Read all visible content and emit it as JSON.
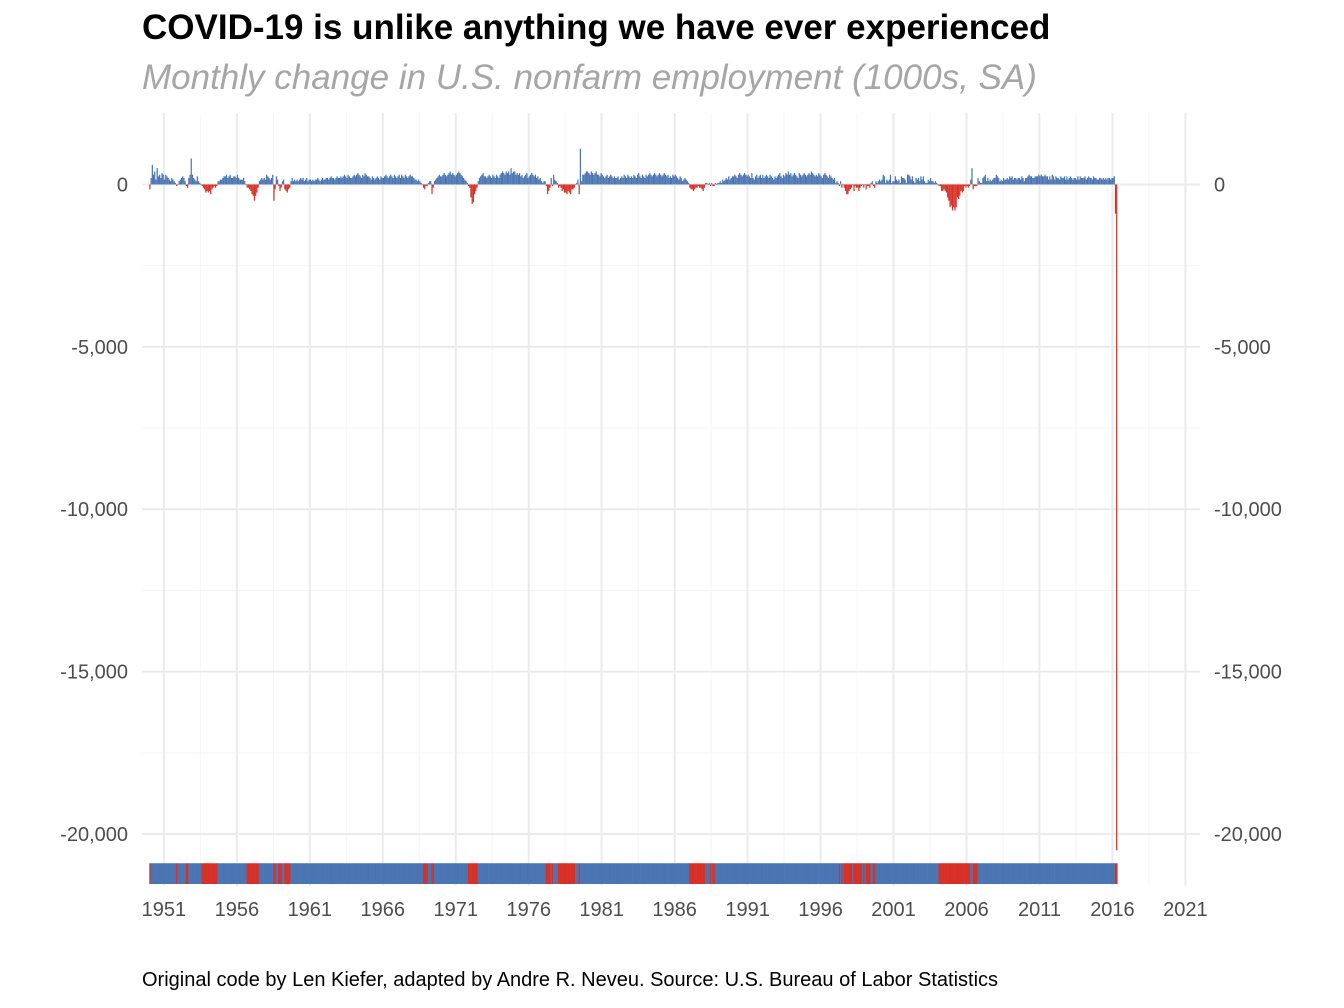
{
  "title": "COVID-19 is unlike anything we have ever experienced",
  "subtitle": "Monthly change in U.S. nonfarm employment (1000s, SA)",
  "caption": "Original code by Len Kiefer, adapted by Andre R. Neveu. Source: U.S. Bureau of Labor Statistics",
  "colors": {
    "positive": "#4a75b2",
    "negative": "#d73027",
    "grid": "#ebebeb",
    "tick_text": "#4d4d4d"
  },
  "chart_data": {
    "type": "bar",
    "title": "COVID-19 is unlike anything we have ever experienced",
    "subtitle": "Monthly change in U.S. nonfarm employment (1000s, SA)",
    "xlabel": "",
    "ylabel": "",
    "xlim": [
      1949.5,
      2022
    ],
    "ylim": [
      -21600,
      2200
    ],
    "grid": true,
    "secondary_y_axis": true,
    "rug_strip": "colored by sign of monthly change (blue positive, red negative)",
    "x_ticks": [
      "1951",
      "1956",
      "1961",
      "1966",
      "1971",
      "1976",
      "1981",
      "1986",
      "1991",
      "1996",
      "2001",
      "2006",
      "2011",
      "2016",
      "2021"
    ],
    "x_tick_values": [
      1951,
      1956,
      1961,
      1966,
      1971,
      1976,
      1981,
      1986,
      1991,
      1996,
      2001,
      2006,
      2011,
      2016,
      2021
    ],
    "y_ticks": [
      "0",
      "-5,000",
      "-10,000",
      "-15,000",
      "-20,000"
    ],
    "y_tick_values": [
      0,
      -5000,
      -10000,
      -15000,
      -20000
    ],
    "period_start": "1950-01",
    "frequency": "monthly",
    "values": [
      -150,
      200,
      600,
      300,
      400,
      150,
      500,
      250,
      300,
      200,
      350,
      300,
      150,
      300,
      250,
      200,
      150,
      100,
      200,
      150,
      100,
      50,
      -50,
      0,
      100,
      150,
      200,
      250,
      200,
      100,
      -50,
      -100,
      200,
      300,
      800,
      300,
      200,
      150,
      100,
      250,
      100,
      50,
      0,
      -50,
      -100,
      -150,
      -250,
      -200,
      -250,
      -200,
      -300,
      -150,
      -100,
      -50,
      -100,
      -50,
      100,
      100,
      150,
      150,
      200,
      250,
      250,
      300,
      200,
      250,
      300,
      200,
      200,
      250,
      250,
      200,
      300,
      200,
      150,
      150,
      150,
      200,
      100,
      0,
      -100,
      -100,
      -150,
      -200,
      -300,
      -350,
      -500,
      -350,
      -250,
      -100,
      100,
      150,
      200,
      150,
      200,
      150,
      300,
      250,
      200,
      150,
      200,
      300,
      -500,
      -150,
      250,
      150,
      -50,
      -200,
      -100,
      100,
      150,
      -150,
      -200,
      -250,
      -150,
      -100,
      100,
      200,
      100,
      150,
      100,
      150,
      100,
      150,
      200,
      150,
      200,
      100,
      150,
      200,
      100,
      150,
      150,
      100,
      150,
      100,
      150,
      150,
      200,
      150,
      100,
      150,
      200,
      150,
      150,
      200,
      200,
      150,
      200,
      250,
      200,
      200,
      150,
      200,
      250,
      200,
      200,
      250,
      200,
      250,
      300,
      250,
      200,
      300,
      250,
      200,
      200,
      250,
      300,
      250,
      300,
      350,
      300,
      250,
      200,
      300,
      250,
      350,
      300,
      250,
      250,
      200,
      150,
      250,
      200,
      150,
      200,
      250,
      200,
      150,
      250,
      200,
      200,
      250,
      300,
      250,
      200,
      250,
      300,
      250,
      200,
      300,
      250,
      200,
      250,
      300,
      200,
      300,
      250,
      200,
      300,
      250,
      200,
      250,
      300,
      250,
      250,
      200,
      150,
      150,
      100,
      150,
      100,
      50,
      0,
      -100,
      -150,
      -50,
      -50,
      50,
      100,
      100,
      -300,
      -100,
      100,
      150,
      200,
      250,
      300,
      250,
      250,
      300,
      350,
      300,
      250,
      300,
      350,
      400,
      300,
      350,
      300,
      250,
      300,
      350,
      400,
      350,
      300,
      250,
      200,
      150,
      100,
      50,
      -50,
      -100,
      -400,
      -600,
      -550,
      -300,
      -200,
      -100,
      100,
      200,
      250,
      300,
      350,
      250,
      250,
      200,
      250,
      300,
      250,
      200,
      300,
      250,
      200,
      300,
      250,
      200,
      300,
      350,
      400,
      350,
      300,
      400,
      350,
      400,
      300,
      500,
      350,
      400,
      400,
      300,
      350,
      300,
      350,
      250,
      300,
      200,
      250,
      300,
      350,
      200,
      250,
      300,
      350,
      300,
      250,
      300,
      200,
      250,
      150,
      200,
      100,
      50,
      100,
      100,
      -50,
      -300,
      -200,
      -100,
      200,
      -50,
      300,
      150,
      100,
      50,
      -100,
      -50,
      -100,
      -200,
      -150,
      -250,
      -250,
      -300,
      -200,
      -250,
      -300,
      -150,
      -150,
      -100,
      0,
      50,
      150,
      -300,
      1100,
      100,
      300,
      300,
      350,
      400,
      400,
      350,
      300,
      400,
      350,
      300,
      350,
      400,
      300,
      300,
      250,
      350,
      300,
      250,
      200,
      250,
      300,
      200,
      250,
      300,
      250,
      200,
      250,
      200,
      200,
      250,
      150,
      200,
      250,
      200,
      300,
      250,
      200,
      300,
      250,
      200,
      250,
      200,
      300,
      250,
      200,
      300,
      350,
      250,
      200,
      300,
      250,
      200,
      300,
      250,
      300,
      350,
      300,
      250,
      300,
      350,
      300,
      250,
      300,
      350,
      300,
      250,
      300,
      350,
      300,
      250,
      300,
      200,
      250,
      200,
      300,
      250,
      300,
      250,
      200,
      150,
      250,
      200,
      100,
      150,
      200,
      150,
      100,
      50,
      -100,
      -150,
      -150,
      -200,
      -150,
      -100,
      -100,
      -50,
      -100,
      -100,
      -150,
      -200,
      -100,
      50,
      50,
      0,
      50,
      -50,
      50,
      -50,
      -50,
      50,
      0,
      50,
      50,
      100,
      50,
      150,
      100,
      150,
      200,
      150,
      250,
      150,
      200,
      250,
      250,
      300,
      250,
      200,
      300,
      350,
      300,
      250,
      300,
      350,
      300,
      250,
      300,
      250,
      200,
      350,
      200,
      150,
      250,
      300,
      200,
      250,
      300,
      200,
      300,
      200,
      250,
      300,
      250,
      200,
      300,
      250,
      200,
      150,
      250,
      200,
      250,
      300,
      350,
      250,
      200,
      300,
      250,
      350,
      300,
      400,
      300,
      350,
      250,
      300,
      350,
      300,
      250,
      200,
      350,
      300,
      250,
      300,
      350,
      300,
      250,
      300,
      350,
      300,
      400,
      350,
      300,
      250,
      300,
      250,
      350,
      300,
      250,
      200,
      300,
      350,
      300,
      250,
      200,
      300,
      250,
      200,
      150,
      200,
      50,
      100,
      50,
      -50,
      100,
      -100,
      0,
      -100,
      -200,
      -300,
      -300,
      -200,
      -150,
      -100,
      0,
      -200,
      -50,
      -100,
      -100,
      -200,
      -100,
      -50,
      0,
      -100,
      0,
      -150,
      -50,
      -50,
      -100,
      50,
      100,
      -50,
      -100,
      100,
      50,
      100,
      150,
      100,
      150,
      300,
      250,
      50,
      150,
      100,
      150,
      300,
      50,
      100,
      100,
      250,
      150,
      100,
      150,
      50,
      250,
      200,
      200,
      150,
      50,
      300,
      300,
      250,
      150,
      250,
      100,
      50,
      200,
      150,
      200,
      100,
      250,
      150,
      250,
      100,
      50,
      50,
      150,
      100,
      200,
      100,
      100,
      50,
      100,
      50,
      0,
      -50,
      -50,
      -200,
      -200,
      -150,
      -200,
      -250,
      -400,
      -500,
      -700,
      -650,
      -800,
      -700,
      -800,
      -700,
      -400,
      -450,
      -350,
      -200,
      -250,
      -200,
      -50,
      -100,
      -50,
      -100,
      -50,
      150,
      500,
      -150,
      -50,
      -50,
      -50,
      200,
      100,
      50,
      50,
      200,
      250,
      300,
      100,
      200,
      100,
      150,
      100,
      150,
      200,
      200,
      300,
      250,
      200,
      100,
      150,
      100,
      200,
      150,
      150,
      200,
      150,
      250,
      200,
      250,
      150,
      200,
      200,
      150,
      200,
      200,
      150,
      250,
      200,
      100,
      200,
      200,
      250,
      300,
      250,
      250,
      200,
      200,
      250,
      250,
      250,
      300,
      250,
      300,
      250,
      250,
      300,
      250,
      250,
      150,
      250,
      150,
      300,
      250,
      150,
      250,
      200,
      200,
      150,
      250,
      200,
      200,
      250,
      150,
      250,
      150,
      200,
      250,
      200,
      150,
      200,
      200,
      150,
      250,
      150,
      250,
      200,
      200,
      200,
      250,
      150,
      200,
      250,
      200,
      200,
      150,
      250,
      200,
      200,
      150,
      150,
      200,
      200,
      150,
      200,
      150,
      200,
      150,
      200,
      200,
      150,
      200,
      200,
      250,
      -900,
      -20500
    ]
  }
}
